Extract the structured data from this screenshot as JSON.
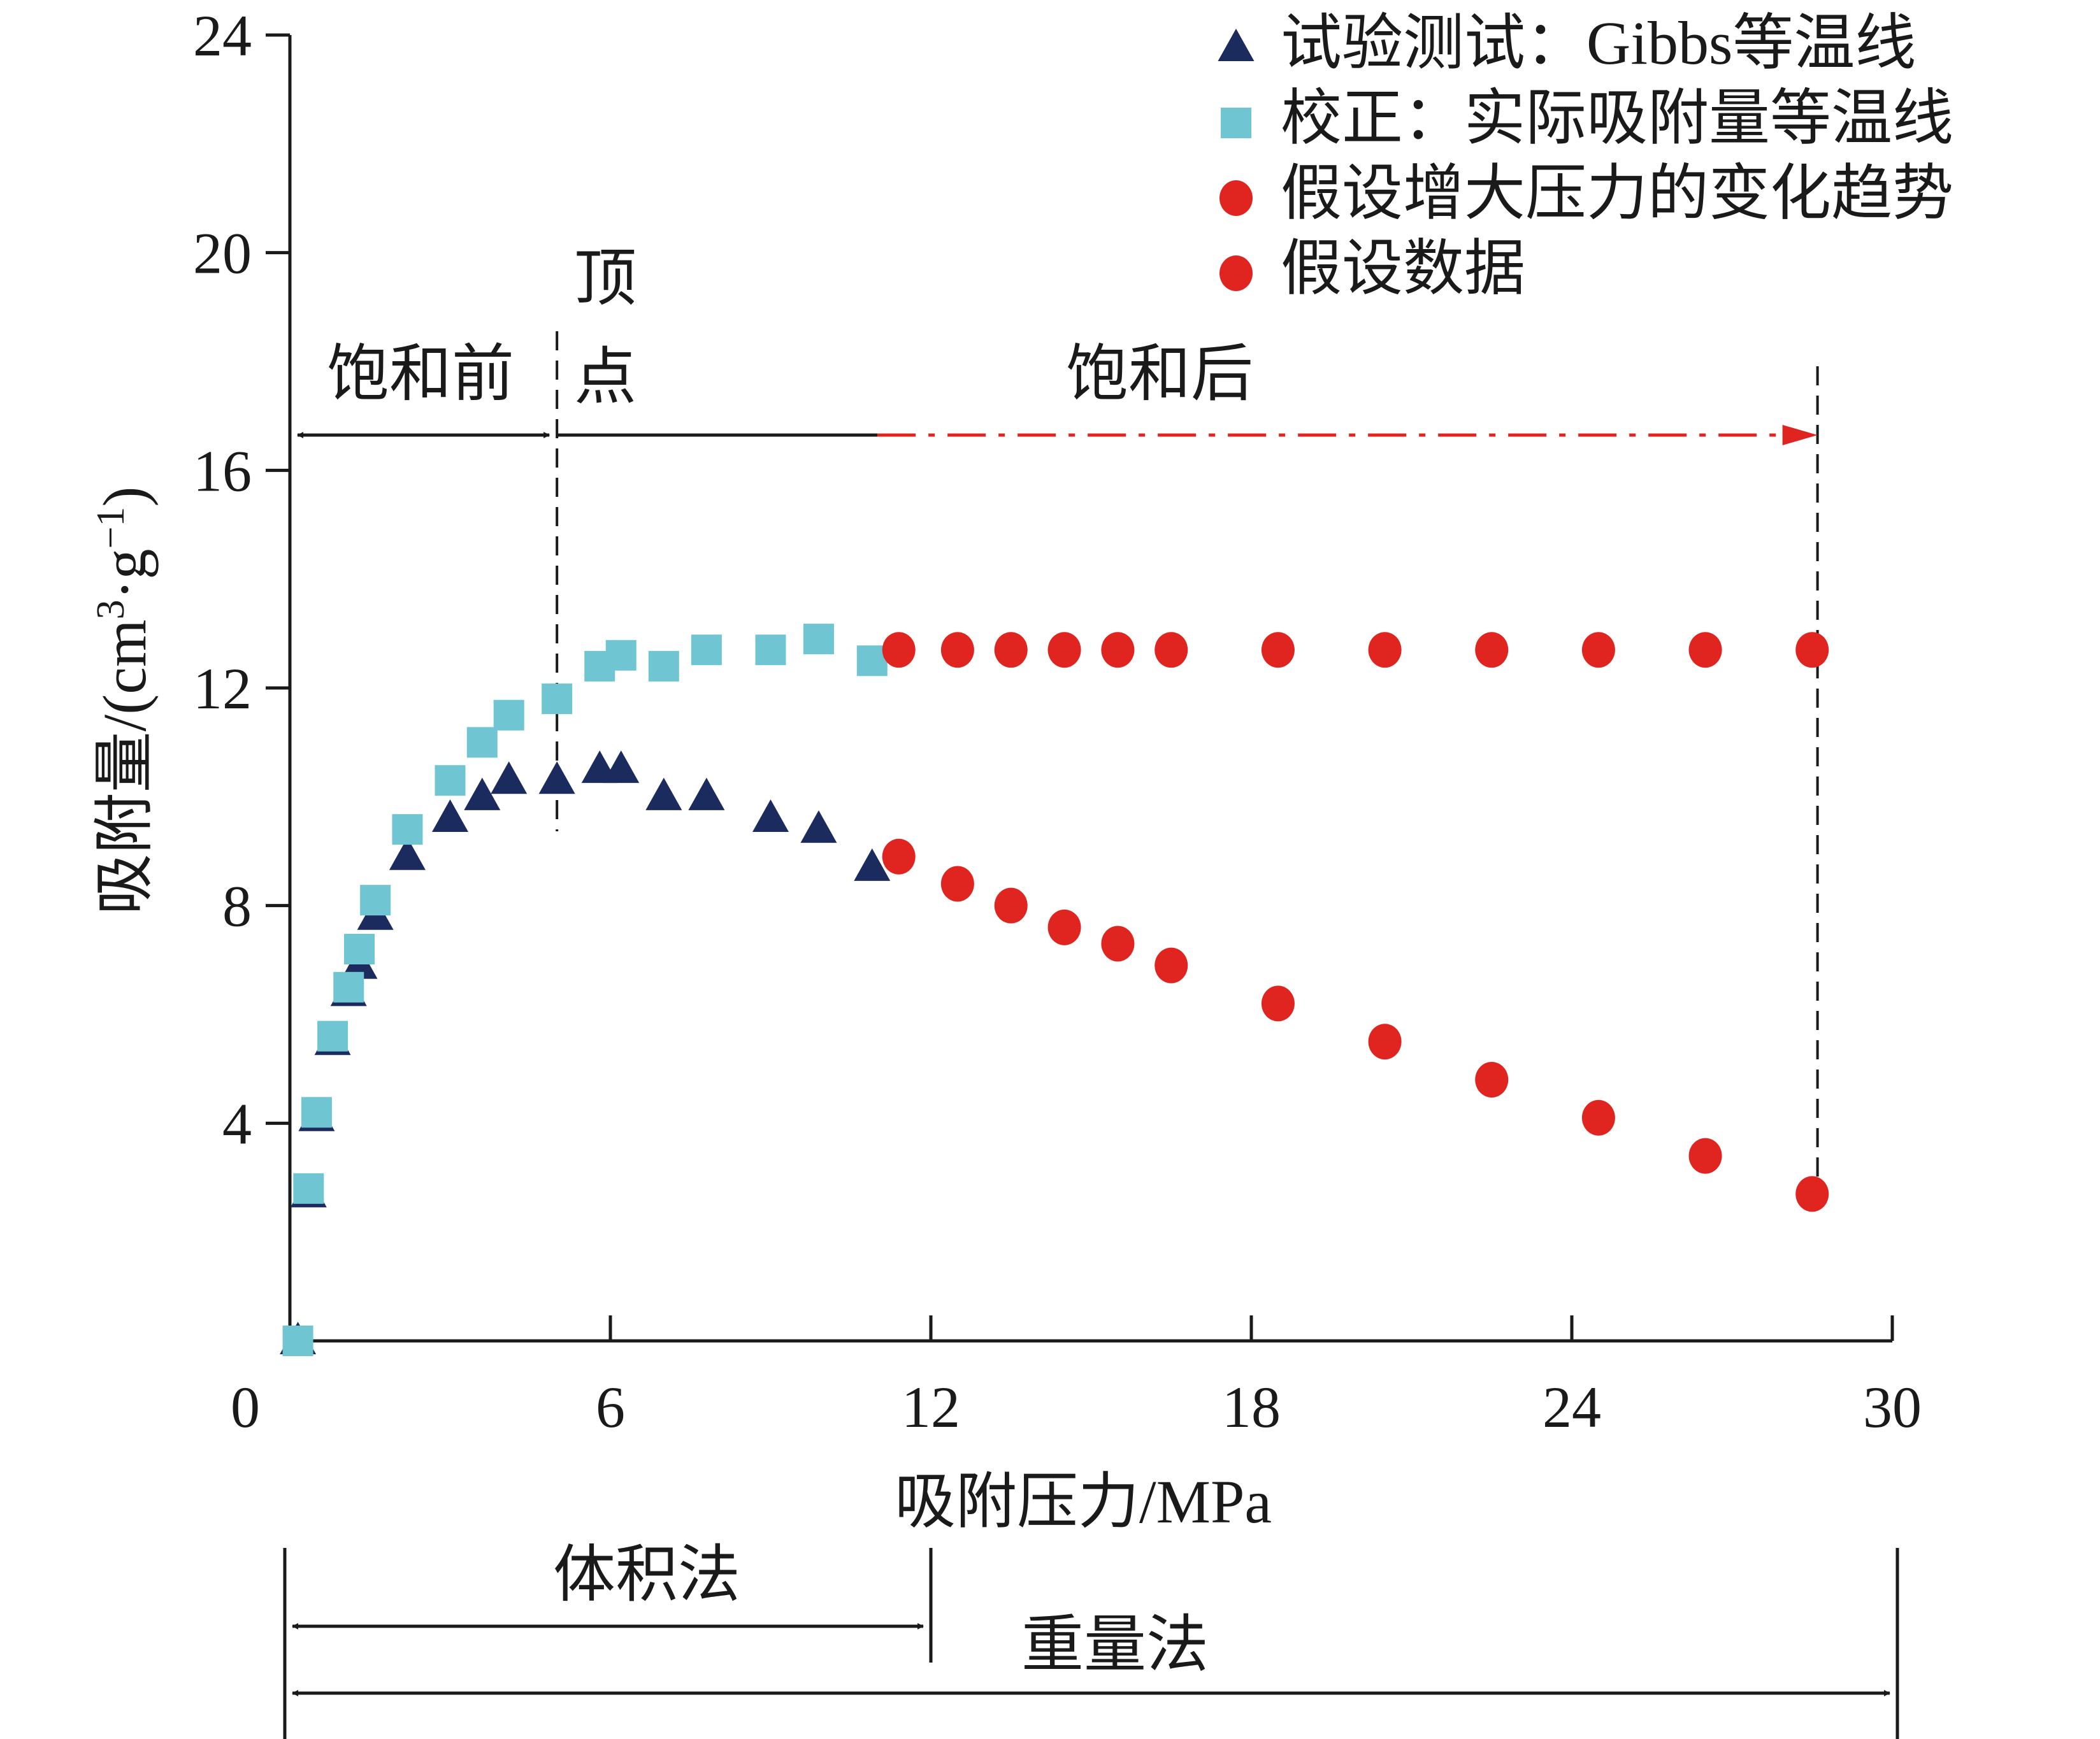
{
  "chart_data": {
    "type": "scatter",
    "xlabel": "吸附压力/MPa",
    "ylabel_main": "吸附量/(cm",
    "ylabel_sup1": "3",
    "ylabel_mid": "·g",
    "ylabel_sup2": "−1",
    "ylabel_end": ")",
    "xlim": [
      0,
      30
    ],
    "ylim": [
      0,
      24
    ],
    "xticks": [
      "0",
      "6",
      "12",
      "18",
      "24",
      "30"
    ],
    "yticks": [
      "4",
      "8",
      "12",
      "16",
      "20",
      "24"
    ],
    "legend_position": "top-right",
    "legend": [
      {
        "label": "试验测试：Gibbs等温线",
        "marker": "triangle",
        "color": "#1c2b5e"
      },
      {
        "label": "校正：实际吸附量等温线",
        "marker": "square",
        "color": "#6fc6d2"
      },
      {
        "label": "假设增大压力的变化趋势",
        "marker": "circle",
        "color": "#e02420"
      },
      {
        "label": "假设数据",
        "marker": "circle",
        "color": "#e02420"
      }
    ],
    "series": [
      {
        "name": "试验测试：Gibbs等温线",
        "marker": "triangle",
        "color": "#1c2b5e",
        "x": [
          0.15,
          0.35,
          0.5,
          0.8,
          1.1,
          1.3,
          1.6,
          2.2,
          3.0,
          3.6,
          4.1,
          5.0,
          5.8,
          6.2,
          7.0,
          7.8,
          9.0,
          9.9,
          10.9
        ],
        "y": [
          0.0,
          2.7,
          4.1,
          5.5,
          6.4,
          6.9,
          7.8,
          8.9,
          9.6,
          10.0,
          10.3,
          10.3,
          10.5,
          10.5,
          10.0,
          10.0,
          9.6,
          9.4,
          8.7
        ]
      },
      {
        "name": "校正：实际吸附量等温线",
        "marker": "square",
        "color": "#6fc6d2",
        "x": [
          0.15,
          0.35,
          0.5,
          0.8,
          1.1,
          1.3,
          1.6,
          2.2,
          3.0,
          3.6,
          4.1,
          5.0,
          5.8,
          6.2,
          7.0,
          7.8,
          9.0,
          9.9,
          10.9
        ],
        "y": [
          0.0,
          2.8,
          4.2,
          5.6,
          6.5,
          7.2,
          8.1,
          9.4,
          10.3,
          11.0,
          11.5,
          11.8,
          12.4,
          12.6,
          12.4,
          12.7,
          12.7,
          12.9,
          12.5
        ]
      },
      {
        "name": "假设增大压力的变化趋势",
        "marker": "circle",
        "color": "#e02420",
        "x": [
          11.4,
          12.5,
          13.5,
          14.5,
          15.5,
          16.5,
          18.5,
          20.5,
          22.5,
          24.5,
          26.5,
          28.5
        ],
        "y": [
          12.7,
          12.7,
          12.7,
          12.7,
          12.7,
          12.7,
          12.7,
          12.7,
          12.7,
          12.7,
          12.7,
          12.7
        ]
      },
      {
        "name": "假设数据",
        "marker": "circle",
        "color": "#e02420",
        "x": [
          11.4,
          12.5,
          13.5,
          14.5,
          15.5,
          16.5,
          18.5,
          20.5,
          22.5,
          24.5,
          26.5,
          28.5
        ],
        "y": [
          8.9,
          8.4,
          8.0,
          7.6,
          7.3,
          6.9,
          6.2,
          5.5,
          4.8,
          4.1,
          3.4,
          2.7
        ]
      }
    ],
    "annotations": {
      "before_saturation": "饱和前",
      "vertex_line1": "顶",
      "vertex_line2": "点",
      "after_saturation": "饱和后",
      "volumetric_method": "体积法",
      "gravimetric_method": "重量法"
    },
    "annotation_x": {
      "vertex": 5.0,
      "red_arrow_start": 11.0,
      "arrow_end": 28.6,
      "volumetric_end": 12.0
    },
    "colors": {
      "axis": "#1a1a1a",
      "arrow_black": "#1a1a1a",
      "arrow_red": "#e02420"
    }
  }
}
